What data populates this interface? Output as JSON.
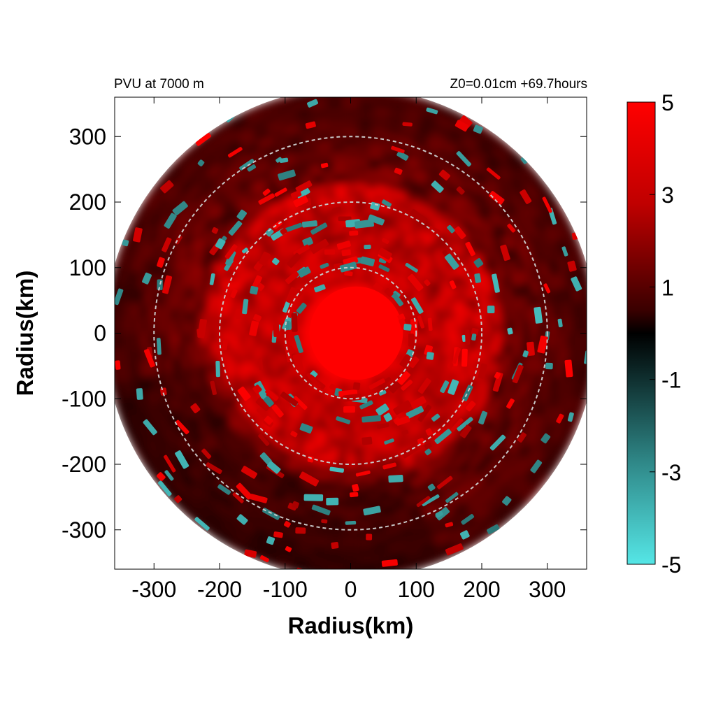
{
  "chart_data": {
    "type": "heatmap",
    "title_left": "PVU at  7000 m",
    "title_right": "Z0=0.01cm  +69.7hours",
    "xlabel": "Radius(km)",
    "ylabel": "Radius(km)",
    "xlim": [
      -360,
      360
    ],
    "ylim": [
      -360,
      360
    ],
    "x_ticks": [
      -300,
      -200,
      -100,
      0,
      100,
      200,
      300
    ],
    "y_ticks": [
      300,
      200,
      100,
      0,
      -100,
      -200,
      -300
    ],
    "data_radius_km": 375,
    "reference_circles_km": [
      100,
      200,
      300
    ],
    "grid": false,
    "colorbar": {
      "range": [
        -5,
        5
      ],
      "ticks": [
        5,
        3,
        1,
        -1,
        -3,
        -5
      ],
      "color_max": "#ff0000",
      "color_mid": "#000000",
      "color_min": "#55e6e6",
      "position": "right"
    },
    "field_description": {
      "core_value": 5,
      "core_radius_km": 75,
      "annular_band_value": 4,
      "annular_band_km": [
        100,
        230
      ],
      "outer_value": 1.5,
      "negative_anomalies_value": -4
    }
  }
}
